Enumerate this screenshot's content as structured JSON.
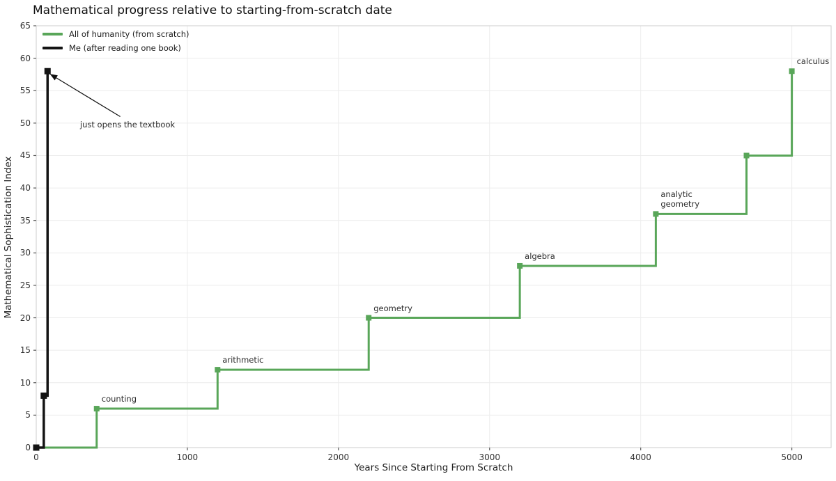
{
  "title": "Mathematical progress relative to starting-from-scratch date",
  "axes": {
    "xlabel": "Years Since Starting From Scratch",
    "ylabel": "Mathematical Sophistication Index"
  },
  "legend": {
    "items": [
      {
        "label": "All of humanity (from scratch)",
        "color": "#59a659"
      },
      {
        "label": "Me (after reading one book)",
        "color": "#141414"
      }
    ]
  },
  "chart_data": {
    "type": "line",
    "step": "post",
    "title": "Mathematical progress relative to starting-from-scratch date",
    "xlabel": "Years Since Starting From Scratch",
    "ylabel": "Mathematical Sophistication Index",
    "xlim": [
      0,
      5260
    ],
    "ylim": [
      0,
      65
    ],
    "x_ticks": [
      0,
      1000,
      2000,
      3000,
      4000,
      5000
    ],
    "y_ticks": [
      0,
      5,
      10,
      15,
      20,
      25,
      30,
      35,
      40,
      45,
      50,
      55,
      60,
      65
    ],
    "grid": true,
    "legend_position": "upper left",
    "series": [
      {
        "name": "All of humanity (from scratch)",
        "color": "#59a659",
        "marker": "square",
        "line_width": 3,
        "marker_size": 8,
        "x": [
          0,
          400,
          1200,
          2200,
          3200,
          4100,
          4700,
          5000
        ],
        "y": [
          0,
          6,
          12,
          20,
          28,
          36,
          45,
          58
        ]
      },
      {
        "name": "Me (after reading one book)",
        "color": "#141414",
        "marker": "square",
        "line_width": 3.5,
        "marker_size": 9,
        "x": [
          0,
          50,
          75
        ],
        "y": [
          0,
          8,
          58
        ]
      }
    ],
    "point_labels": [
      {
        "text": "counting",
        "x": 400,
        "y": 6
      },
      {
        "text": "arithmetic",
        "x": 1200,
        "y": 12
      },
      {
        "text": "geometry",
        "x": 2200,
        "y": 20
      },
      {
        "text": "algebra",
        "x": 3200,
        "y": 28
      },
      {
        "text": "analytic\ngeometry",
        "x": 4100,
        "y": 36
      },
      {
        "text": "calculus",
        "x": 5000,
        "y": 58
      }
    ],
    "annotation": {
      "text": "just opens the textbook",
      "text_xy": [
        290,
        49
      ],
      "arrow_start_xy": [
        556,
        51
      ],
      "arrow_end_xy": [
        95,
        57.5
      ]
    },
    "style": {
      "grid_color": "#ececec",
      "spine_color": "#cccccc",
      "tick_color": "#555555",
      "tick_label_color": "#333333"
    }
  }
}
